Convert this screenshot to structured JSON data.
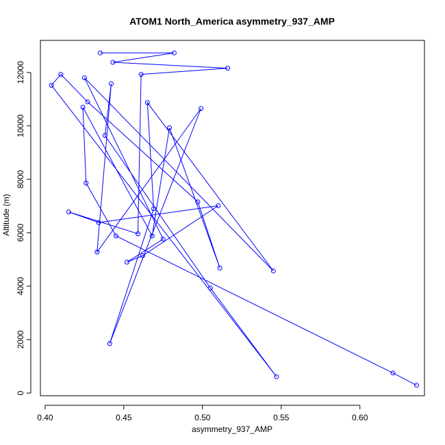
{
  "chart_data": {
    "type": "line",
    "title": "ATOM1 North_America asymmetry_937_AMP",
    "xlabel": "asymmetry_937_AMP",
    "ylabel": "Altitude (m)",
    "xlim": [
      0.397,
      0.641
    ],
    "ylim": [
      -100,
      13200
    ],
    "xticks": [
      0.4,
      0.45,
      0.5,
      0.55,
      0.6
    ],
    "xtick_labels": [
      "0.40",
      "0.45",
      "0.50",
      "0.55",
      "0.60"
    ],
    "yticks": [
      0,
      2000,
      4000,
      6000,
      8000,
      10000,
      12000
    ],
    "ytick_labels": [
      "0",
      "2000",
      "4000",
      "6000",
      "8000",
      "10000",
      "12000"
    ],
    "series": [
      {
        "name": "asymmetry_937_AMP",
        "color": "#0000ff",
        "marker": "open-circle",
        "x": [
          0.636,
          0.621,
          0.445,
          0.426,
          0.424,
          0.468,
          0.479,
          0.511,
          0.497,
          0.427,
          0.41,
          0.404,
          0.547,
          0.505,
          0.438,
          0.442,
          0.433,
          0.499,
          0.441,
          0.469,
          0.465,
          0.545,
          0.425,
          0.475,
          0.452,
          0.462,
          0.51,
          0.434,
          0.415,
          0.459,
          0.461,
          0.516,
          0.443,
          0.482,
          0.435
        ],
        "y": [
          290,
          750,
          5880,
          7860,
          10700,
          5880,
          9930,
          4680,
          7160,
          10900,
          11930,
          11520,
          610,
          3930,
          9640,
          11580,
          5280,
          10650,
          1850,
          6900,
          10870,
          4570,
          11800,
          5760,
          4900,
          5140,
          7010,
          6380,
          6780,
          5960,
          11930,
          12160,
          12380,
          12730,
          12730
        ]
      }
    ]
  }
}
